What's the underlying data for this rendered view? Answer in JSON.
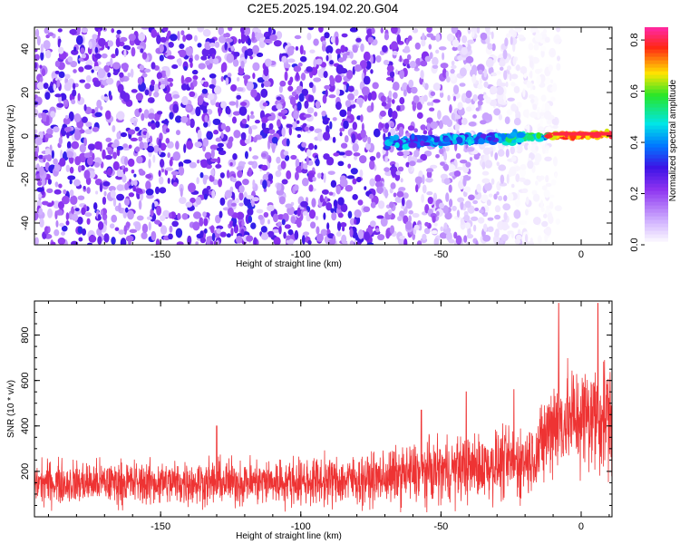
{
  "title": "C2E5.2025.194.02.20.G04",
  "chart_data": [
    {
      "type": "heatmap",
      "xlabel": "Height of straight line (km)",
      "ylabel": "Frequency (Hz)",
      "xlim": [
        -195,
        11
      ],
      "ylim": [
        -50,
        50
      ],
      "xticks": [
        -150,
        -100,
        -50,
        0
      ],
      "yticks": [
        -40,
        -20,
        0,
        20,
        40
      ],
      "grid": false,
      "colorbar": {
        "label": "Normalized spectral amplitude",
        "range": [
          0,
          0.85
        ],
        "ticks": [
          0,
          0.2,
          0.4,
          0.6,
          0.8
        ],
        "colormap": "white-purple-blue-cyan-green-yellow-red-magenta"
      },
      "features": {
        "strong_signal_band": {
          "x_start": -70,
          "x_end": 11,
          "frequency_start": -3,
          "frequency_end": 1
        },
        "noise_extent_x": [
          -195,
          -18
        ],
        "noise_fade_start_x": -75
      }
    },
    {
      "type": "line",
      "xlabel": "Height of straight line (km)",
      "ylabel": "SNR (10 * v/v)",
      "xlim": [
        -195,
        11
      ],
      "ylim": [
        0,
        950
      ],
      "xticks": [
        -150,
        -100,
        -50,
        0
      ],
      "yticks": [
        200,
        400,
        600,
        800
      ],
      "grid": false,
      "series_color": "#ee3333",
      "envelope": [
        {
          "x": -195,
          "low": 40,
          "high": 290,
          "mean": 150
        },
        {
          "x": -150,
          "low": 40,
          "high": 300,
          "mean": 150
        },
        {
          "x": -100,
          "low": 40,
          "high": 320,
          "mean": 155
        },
        {
          "x": -75,
          "low": 40,
          "high": 330,
          "mean": 165
        },
        {
          "x": -60,
          "low": 40,
          "high": 400,
          "mean": 190
        },
        {
          "x": -40,
          "low": 40,
          "high": 420,
          "mean": 215
        },
        {
          "x": -20,
          "low": 40,
          "high": 460,
          "mean": 245
        },
        {
          "x": -15,
          "low": 60,
          "high": 500,
          "mean": 290
        },
        {
          "x": -10,
          "low": 90,
          "high": 700,
          "mean": 420
        },
        {
          "x": 0,
          "low": 100,
          "high": 750,
          "mean": 440
        },
        {
          "x": 11,
          "low": 100,
          "high": 760,
          "mean": 450
        }
      ],
      "peaks": [
        {
          "x": -130,
          "y": 400
        },
        {
          "x": -57,
          "y": 470
        },
        {
          "x": -41,
          "y": 550
        },
        {
          "x": -24,
          "y": 560
        },
        {
          "x": -8,
          "y": 940
        },
        {
          "x": 6,
          "y": 940
        }
      ]
    }
  ]
}
